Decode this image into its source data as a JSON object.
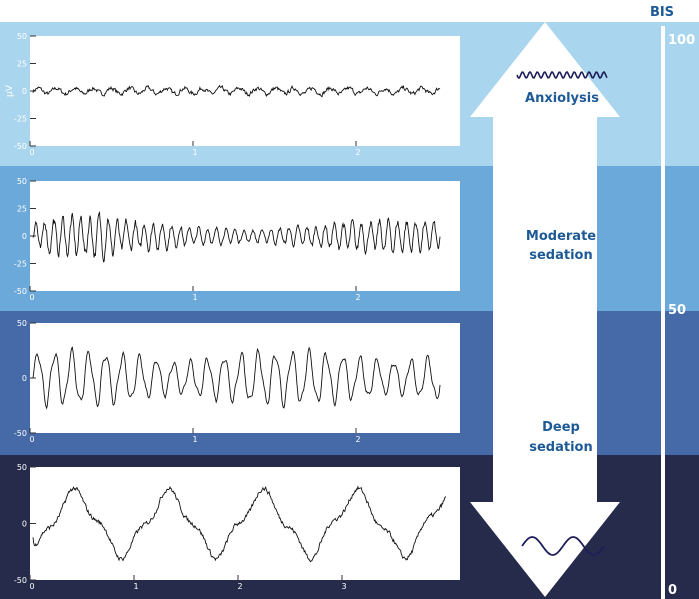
{
  "colors": {
    "band1": "#a9d6ee",
    "band2": "#6ba9da",
    "band3": "#4669a8",
    "band4": "#262b4b",
    "text_dark": "#1e5b96",
    "axis_text": "#ffffff"
  },
  "scale": {
    "title": "BIS",
    "top_label": "100",
    "mid_label": "50",
    "bottom_label": "0"
  },
  "arrow": {
    "top_icon": "small-fast-wave-icon",
    "bottom_icon": "slow-wave-icon"
  },
  "states": [
    {
      "line1": "Anxiolysis",
      "line2": ""
    },
    {
      "line1": "Moderate",
      "line2": "sedation"
    },
    {
      "line1": "Deep",
      "line2": "sedation"
    }
  ],
  "chart_data": [
    {
      "type": "line",
      "ylabel": "μV",
      "ylim": [
        -50,
        50
      ],
      "yticks": [
        "50",
        "25",
        "0",
        "-25",
        "-50"
      ],
      "xticks": [
        "0",
        "1",
        "2"
      ],
      "xlim": [
        0,
        2.5
      ],
      "description": "low amplitude fast activity",
      "amplitude": 6,
      "frequency": 18
    },
    {
      "type": "line",
      "ylim": [
        -50,
        50
      ],
      "yticks": [
        "50",
        "25",
        "0",
        "-25",
        "-50"
      ],
      "xticks": [
        "0",
        "1",
        "2"
      ],
      "xlim": [
        0,
        2.5
      ],
      "amplitude": 14,
      "frequency": 12
    },
    {
      "type": "line",
      "ylim": [
        -50,
        50
      ],
      "yticks": [
        "50",
        "0",
        "-50"
      ],
      "xticks": [
        "0",
        "1",
        "2"
      ],
      "xlim": [
        0,
        2.5
      ],
      "amplitude": 25,
      "frequency": 7
    },
    {
      "type": "line",
      "ylim": [
        -50,
        50
      ],
      "yticks": [
        "50",
        "0",
        "-50"
      ],
      "xticks": [
        "0",
        "1",
        "2",
        "3"
      ],
      "xlim": [
        0,
        4
      ],
      "amplitude": 30,
      "frequency": 1.1
    }
  ]
}
